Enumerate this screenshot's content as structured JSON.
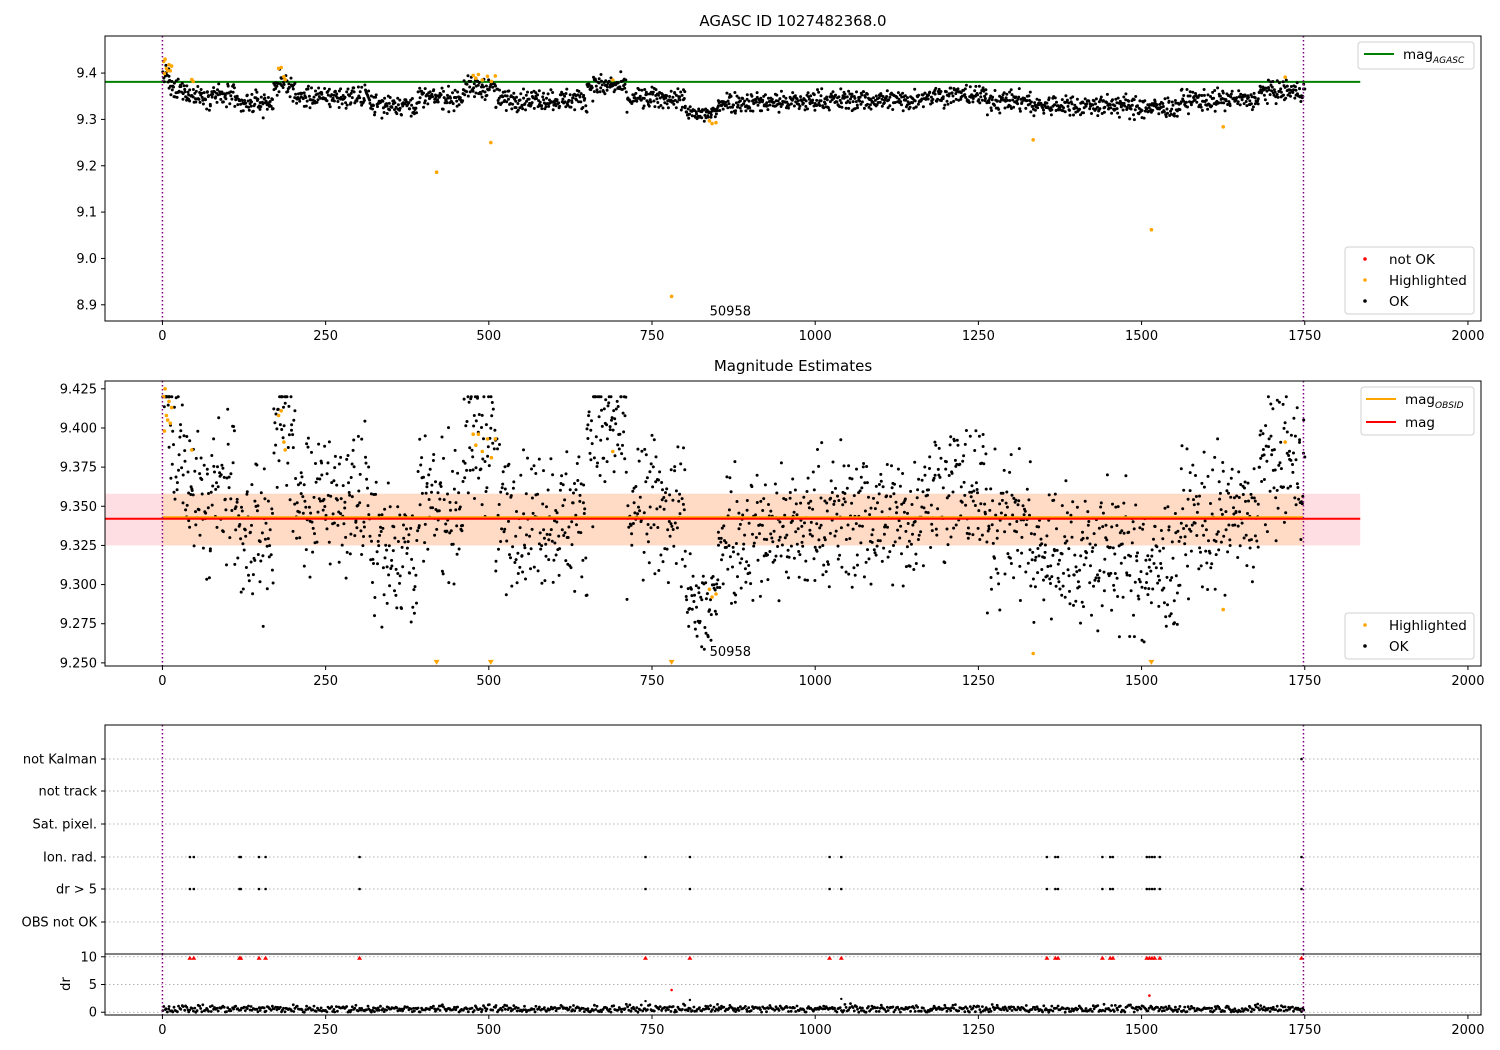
{
  "figure": {
    "title": "AGASC ID 1027482368.0",
    "obsid_label": "50958"
  },
  "colors": {
    "ok": "#000000",
    "highlighted": "#ffa500",
    "not_ok": "#ff0000",
    "mag_agasc": "#008000",
    "mag_obsid": "#ffa500",
    "mag": "#ff0000",
    "band": "#ffb6c1",
    "band_inner": "#ffdab9",
    "obs_bounds": "#800080",
    "grid": "#b4b4b4"
  },
  "chart_data": [
    {
      "type": "scatter",
      "panel": "agasc",
      "title": "AGASC ID 1027482368.0",
      "xlabel": "",
      "ylabel": "",
      "xlim": [
        -88,
        2020
      ],
      "ylim": [
        8.865,
        9.48
      ],
      "xticks": [
        0,
        250,
        500,
        750,
        1000,
        1250,
        1500,
        1750,
        2000
      ],
      "yticks": [
        8.9,
        9.0,
        9.1,
        9.2,
        9.3,
        9.4
      ],
      "ytick_labels": [
        "8.9",
        "9.0",
        "9.1",
        "9.2",
        "9.3",
        "9.4"
      ],
      "mag_agasc": 9.381,
      "mag_agasc_x_extent": [
        -88,
        1835
      ],
      "obs_bounds": [
        0,
        1748
      ],
      "obsid_text": {
        "x": 870,
        "y": 8.885
      },
      "legend_lines": [
        {
          "label": "mag",
          "sub": "AGASC",
          "color": "#008000"
        }
      ],
      "legend_points": [
        {
          "label": "not OK",
          "color": "#ff0000"
        },
        {
          "label": "Highlighted",
          "color": "#ffa500"
        },
        {
          "label": "OK",
          "color": "#000000"
        }
      ],
      "series": [
        {
          "name": "OK",
          "role": "ok",
          "n": 1750,
          "level": 9.342,
          "segments": [
            [
              0,
              10,
              9.395
            ],
            [
              10,
              40,
              9.362
            ],
            [
              40,
              110,
              9.352
            ],
            [
              110,
              170,
              9.335
            ],
            [
              170,
              200,
              9.375
            ],
            [
              200,
              320,
              9.348
            ],
            [
              320,
              390,
              9.332
            ],
            [
              390,
              460,
              9.346
            ],
            [
              460,
              510,
              9.368
            ],
            [
              510,
              650,
              9.343
            ],
            [
              650,
              710,
              9.372
            ],
            [
              710,
              800,
              9.345
            ],
            [
              800,
              850,
              9.312
            ],
            [
              850,
              1000,
              9.338
            ],
            [
              1000,
              1160,
              9.342
            ],
            [
              1160,
              1260,
              9.352
            ],
            [
              1260,
              1330,
              9.34
            ],
            [
              1330,
              1480,
              9.33
            ],
            [
              1480,
              1560,
              9.325
            ],
            [
              1560,
              1680,
              9.342
            ],
            [
              1680,
              1750,
              9.36
            ]
          ],
          "noise": 0.015
        },
        {
          "name": "Highlighted",
          "role": "highlighted",
          "points": [
            [
              2,
              9.425
            ],
            [
              4,
              9.43
            ],
            [
              6,
              9.41
            ],
            [
              8,
              9.405
            ],
            [
              10,
              9.418
            ],
            [
              12,
              9.405
            ],
            [
              14,
              9.415
            ],
            [
              3,
              9.399
            ],
            [
              45,
              9.386
            ],
            [
              47,
              9.382
            ],
            [
              178,
              9.41
            ],
            [
              182,
              9.412
            ],
            [
              186,
              9.392
            ],
            [
              188,
              9.386
            ],
            [
              420,
              9.186
            ],
            [
              476,
              9.395
            ],
            [
              480,
              9.389
            ],
            [
              484,
              9.397
            ],
            [
              490,
              9.385
            ],
            [
              498,
              9.393
            ],
            [
              504,
              9.382
            ],
            [
              510,
              9.394
            ],
            [
              503,
              9.25
            ],
            [
              690,
              9.385
            ],
            [
              780,
              8.918
            ],
            [
              838,
              9.297
            ],
            [
              842,
              9.291
            ],
            [
              848,
              9.293
            ],
            [
              1334,
              9.256
            ],
            [
              1515,
              9.062
            ],
            [
              1625,
              9.284
            ],
            [
              1720,
              9.391
            ]
          ]
        },
        {
          "name": "not OK",
          "role": "not_ok",
          "points": []
        }
      ]
    },
    {
      "type": "scatter",
      "panel": "mag_estimates",
      "title": "Magnitude Estimates",
      "xlabel": "",
      "ylabel": "",
      "xlim": [
        -88,
        2020
      ],
      "ylim": [
        9.248,
        9.43
      ],
      "xticks": [
        0,
        250,
        500,
        750,
        1000,
        1250,
        1500,
        1750,
        2000
      ],
      "yticks": [
        9.25,
        9.275,
        9.3,
        9.325,
        9.35,
        9.375,
        9.4,
        9.425
      ],
      "ytick_labels": [
        "9.250",
        "9.275",
        "9.300",
        "9.325",
        "9.350",
        "9.375",
        "9.400",
        "9.425"
      ],
      "mag": 9.342,
      "mag_band": [
        9.325,
        9.358
      ],
      "mag_obsid": 9.343,
      "band_x_extent": [
        -88,
        1835
      ],
      "obs_bounds": [
        0,
        1748
      ],
      "obsid_text": {
        "x": 870,
        "y": 9.257
      },
      "legend_lines": [
        {
          "label": "mag",
          "sub": "OBSID",
          "color": "#ffa500"
        },
        {
          "label": "mag",
          "sub": "",
          "color": "#ff0000"
        }
      ],
      "legend_points": [
        {
          "label": "Highlighted",
          "color": "#ffa500"
        },
        {
          "label": "OK",
          "color": "#000000"
        }
      ],
      "series": [
        {
          "name": "OK",
          "role": "ok",
          "same_as_panel": 0
        },
        {
          "name": "Highlighted",
          "role": "highlighted",
          "points": [
            [
              2,
              9.42
            ],
            [
              4,
              9.425
            ],
            [
              6,
              9.408
            ],
            [
              8,
              9.405
            ],
            [
              10,
              9.417
            ],
            [
              12,
              9.403
            ],
            [
              14,
              9.413
            ],
            [
              3,
              9.398
            ],
            [
              45,
              9.386
            ],
            [
              178,
              9.408
            ],
            [
              182,
              9.411
            ],
            [
              186,
              9.391
            ],
            [
              188,
              9.386
            ],
            [
              476,
              9.396
            ],
            [
              480,
              9.389
            ],
            [
              484,
              9.396
            ],
            [
              490,
              9.385
            ],
            [
              498,
              9.393
            ],
            [
              504,
              9.381
            ],
            [
              510,
              9.393
            ],
            [
              690,
              9.385
            ],
            [
              838,
              9.297
            ],
            [
              842,
              9.292
            ],
            [
              848,
              9.294
            ],
            [
              1334,
              9.256
            ],
            [
              1625,
              9.284
            ],
            [
              1720,
              9.391
            ]
          ]
        },
        {
          "name": "Highlighted (clipped below)",
          "role": "clipped",
          "points": [
            [
              420,
              9.25
            ],
            [
              503,
              9.25
            ],
            [
              780,
              9.25
            ],
            [
              1515,
              9.25
            ]
          ]
        }
      ]
    },
    {
      "type": "scatter",
      "panel": "flags",
      "xlim": [
        -88,
        2020
      ],
      "flag_labels": [
        "not Kalman",
        "not track",
        "Sat. pixel.",
        "Ion. rad.",
        "dr > 5",
        "OBS not OK"
      ],
      "flag_points": {
        "Ion. rad.": [
          42,
          48,
          118,
          120,
          148,
          158,
          302,
          740,
          808,
          1022,
          1040,
          1355,
          1368,
          1372,
          1440,
          1452,
          1456,
          1508,
          1512,
          1516,
          1520,
          1528,
          1745
        ],
        "dr > 5": [
          42,
          48,
          118,
          120,
          148,
          158,
          302,
          740,
          808,
          1022,
          1040,
          1355,
          1368,
          1372,
          1440,
          1452,
          1456,
          1508,
          1512,
          1516,
          1520,
          1528,
          1745
        ],
        "not Kalman": [
          1745
        ],
        "not track": [],
        "Sat. pixel.": [],
        "OBS not OK": []
      },
      "obs_bounds": [
        0,
        1748
      ]
    },
    {
      "type": "scatter",
      "panel": "dr",
      "xlabel": "",
      "ylabel": "dr",
      "xlim": [
        -88,
        2020
      ],
      "ylim": [
        -0.5,
        10.5
      ],
      "yticks": [
        0,
        5,
        10
      ],
      "ytick_labels": [
        "0",
        "5",
        "10"
      ],
      "xticks": [
        0,
        250,
        500,
        750,
        1000,
        1250,
        1500,
        1750,
        2000
      ],
      "xtick_labels": [
        "0",
        "250",
        "500",
        "750",
        "1000",
        "1250",
        "1500",
        "1750",
        "2000"
      ],
      "dr_clip_markers": [
        42,
        48,
        118,
        120,
        148,
        158,
        302,
        740,
        808,
        1022,
        1040,
        1355,
        1368,
        1372,
        1440,
        1452,
        1456,
        1508,
        1512,
        1516,
        1520,
        1528,
        1745
      ],
      "dr_red_points": [
        [
          780,
          4.0
        ],
        [
          1512,
          3.0
        ]
      ],
      "dr_small_highlight": [
        [
          740,
          2.0
        ],
        [
          808,
          2.2
        ],
        [
          1040,
          2.4
        ]
      ],
      "obs_bounds": [
        0,
        1748
      ]
    }
  ]
}
